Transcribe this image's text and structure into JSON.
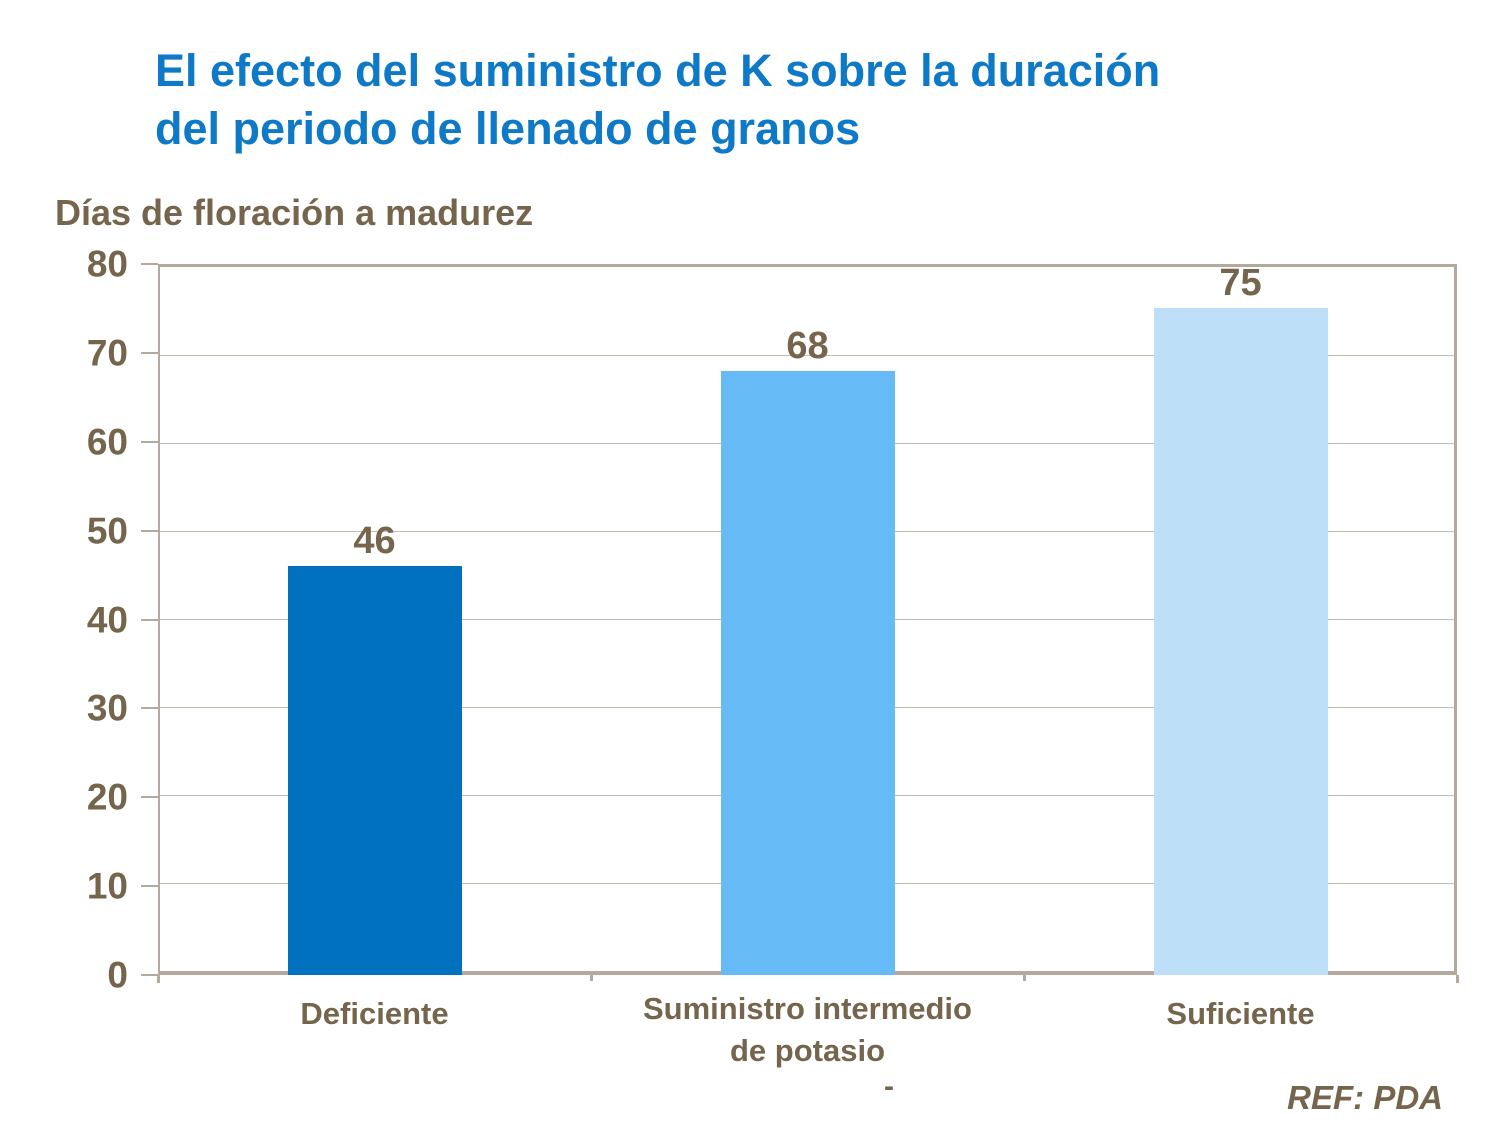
{
  "slide": {
    "title_line1": "El efecto del suministro de K sobre la duración",
    "title_line2": "del periodo de llenado de granos",
    "stray_dash": "-",
    "reference": "REF: PDA"
  },
  "colors": {
    "title_blue": "#0E79C6",
    "text_brown": "#75654C",
    "plot_border": "#B3A99C",
    "gridline": "#C6BDB3",
    "background": "#FFFFFF",
    "bar_colors": [
      "#0071BF",
      "#66BBF7",
      "#BDDFF8"
    ]
  },
  "chart_data": {
    "type": "bar",
    "title": "El efecto del suministro de K sobre la duración del periodo de llenado de granos",
    "ylabel": "Días de floración a madurez",
    "xlabel": "",
    "categories": [
      "Deficiente",
      "Suministro intermedio de potasio",
      "Suficiente"
    ],
    "category_label_lines": [
      [
        "Deficiente"
      ],
      [
        "Suministro intermedio",
        "de potasio"
      ],
      [
        "Suficiente"
      ]
    ],
    "values": [
      46,
      68,
      75
    ],
    "data_labels": [
      "46",
      "68",
      "75"
    ],
    "ylim": [
      0,
      80
    ],
    "yticks": [
      0,
      10,
      20,
      30,
      40,
      50,
      60,
      70,
      80
    ],
    "grid": true,
    "legend_position": "none",
    "annotation": "REF: PDA"
  }
}
